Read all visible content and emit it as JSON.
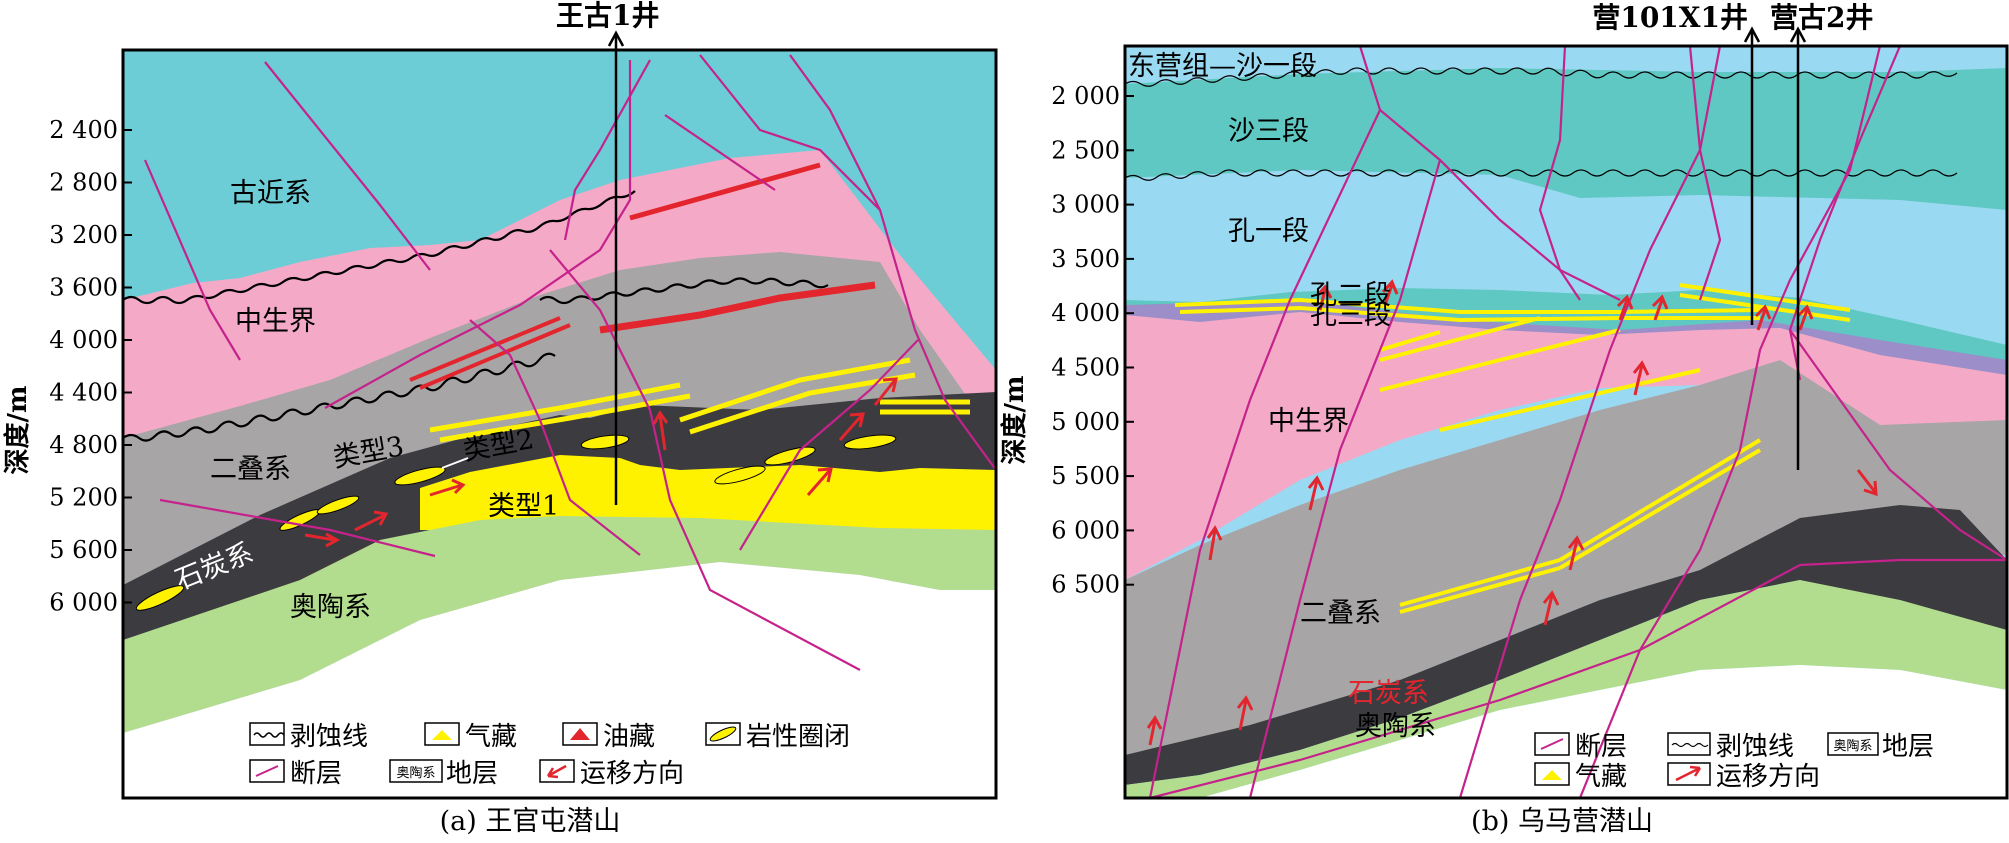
{
  "panel_a": {
    "well": "王古1井",
    "depth_axis_title": "深度/m",
    "depth_ticks": [
      "2 400",
      "2 800",
      "3 200",
      "3 600",
      "4 000",
      "4 400",
      "4 800",
      "5 200",
      "5 600",
      "6 000"
    ],
    "layers": {
      "paleogene": "古近系",
      "mesozoic": "中生界",
      "permian": "二叠系",
      "carboniferous": "石炭系",
      "ordovician": "奥陶系"
    },
    "types": {
      "type1": "类型1",
      "type2": "类型2",
      "type3": "类型3"
    },
    "legend": {
      "erosion_line": "剥蚀线",
      "gas_reservoir": "气藏",
      "oil_reservoir": "油藏",
      "lithologic_trap": "岩性圈闭",
      "fault": "断层",
      "stratum_box": "奥陶系",
      "stratum": "地层",
      "migration": "运移方向"
    },
    "caption": "(a) 王官屯潜山"
  },
  "panel_b": {
    "wells": [
      "营101X1井",
      "营古2井"
    ],
    "depth_axis_title": "深度/m",
    "depth_ticks": [
      "2 000",
      "2 500",
      "3 000",
      "3 500",
      "4 000",
      "4 500",
      "5 000",
      "5 500",
      "6 000",
      "6 500"
    ],
    "layers": {
      "dongying_s1": "东营组—沙一段",
      "sha3": "沙三段",
      "kong1": "孔一段",
      "kong2": "孔二段",
      "kong3": "孔三段",
      "mesozoic": "中生界",
      "permian": "二叠系",
      "carboniferous": "石炭系",
      "ordovician": "奥陶系"
    },
    "legend": {
      "fault": "断层",
      "erosion_line": "剥蚀线",
      "stratum_box": "奥陶系",
      "stratum": "地层",
      "gas_reservoir": "气藏",
      "migration": "运移方向"
    },
    "caption": "(b) 乌马营潜山"
  },
  "colors": {
    "cenozoic": "#6ccdd6",
    "mesozoic": "#f4aac7",
    "permian": "#a7a5a6",
    "carboniferous": "#3c3b40",
    "ordovician": "#b2dd8e",
    "gas": "#fff200",
    "oil": "#e3262e",
    "fault": "#c5228c",
    "kong1": "#9ad9f2",
    "sha3": "#5fc8c2",
    "kong3": "#9b8ec9"
  }
}
